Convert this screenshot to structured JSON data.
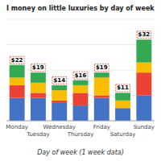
{
  "chart_data": {
    "type": "bar",
    "stacked": true,
    "title": "I money on little luxuries by day of week",
    "x_label": "Day of week (1 week data)",
    "categories": [
      "Monday",
      "Tuesday",
      "Wednesday",
      "Thursday",
      "Friday",
      "Saturday",
      "Sunday"
    ],
    "series": [
      {
        "color": "#4472C4",
        "values": [
          9,
          9,
          7,
          6,
          9,
          5,
          10
        ]
      },
      {
        "color": "#EA4335",
        "values": [
          5,
          2,
          1,
          5,
          1,
          0,
          9
        ]
      },
      {
        "color": "#FBBC04",
        "values": [
          3,
          4,
          4,
          3,
          7,
          3,
          4
        ]
      },
      {
        "color": "#34A853",
        "values": [
          5,
          4,
          2,
          2,
          2,
          3,
          9
        ]
      }
    ],
    "totals": [
      22,
      19,
      14,
      16,
      19,
      11,
      32
    ],
    "total_labels": [
      "$22",
      "$19",
      "$14",
      "$16",
      "$19",
      "$11",
      "$32"
    ],
    "ylim": [
      0,
      40
    ],
    "yticks": [
      0,
      10,
      20,
      30,
      40
    ],
    "grid": true,
    "tick_labels": "x"
  }
}
